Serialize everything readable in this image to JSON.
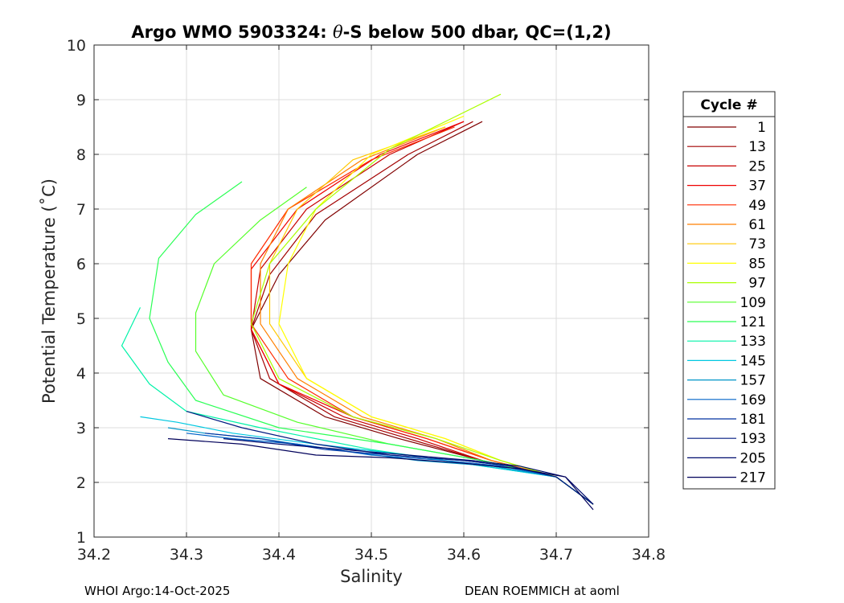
{
  "chart_data": {
    "type": "line",
    "title_prefix": "Argo WMO 5903324: ",
    "title_theta": "θ",
    "title_suffix": "-S below 500 dbar,  QC=(1,2)",
    "xlabel": "Salinity",
    "ylabel": "Potential Temperature (˚C)",
    "xlim": [
      34.2,
      34.8
    ],
    "ylim": [
      1,
      10
    ],
    "x_ticks": [
      "34.2",
      "34.3",
      "34.4",
      "34.5",
      "34.6",
      "34.7",
      "34.8"
    ],
    "y_ticks": [
      "1",
      "2",
      "3",
      "4",
      "5",
      "6",
      "7",
      "8",
      "9",
      "10"
    ],
    "grid": true,
    "legend_title": "Cycle #",
    "legend_position": "right",
    "series": [
      {
        "name": "1",
        "color": "#800000",
        "salinity": [
          34.62,
          34.55,
          34.45,
          34.4,
          34.37,
          34.38,
          34.45,
          34.53,
          34.62,
          34.7,
          34.74
        ],
        "theta": [
          8.6,
          8.0,
          6.8,
          5.8,
          4.8,
          3.9,
          3.2,
          2.8,
          2.4,
          2.1,
          1.6
        ]
      },
      {
        "name": "13",
        "color": "#a30000",
        "salinity": [
          34.61,
          34.54,
          34.44,
          34.39,
          34.37,
          34.39,
          34.46,
          34.54,
          34.62,
          34.7,
          34.74
        ],
        "theta": [
          8.6,
          8.0,
          6.9,
          5.8,
          4.8,
          3.9,
          3.2,
          2.8,
          2.4,
          2.1,
          1.6
        ]
      },
      {
        "name": "25",
        "color": "#c80000",
        "salinity": [
          34.6,
          34.52,
          34.43,
          34.38,
          34.37,
          34.4,
          34.47,
          34.55,
          34.62,
          34.7,
          34.74
        ],
        "theta": [
          8.6,
          8.0,
          7.0,
          5.9,
          4.8,
          3.8,
          3.2,
          2.8,
          2.4,
          2.1,
          1.6
        ]
      },
      {
        "name": "37",
        "color": "#ee0000",
        "salinity": [
          34.6,
          34.51,
          34.42,
          34.37,
          34.37,
          34.4,
          34.48,
          34.56,
          34.63,
          34.7,
          34.74
        ],
        "theta": [
          8.6,
          8.0,
          7.0,
          5.9,
          4.8,
          3.8,
          3.2,
          2.8,
          2.4,
          2.1,
          1.6
        ]
      },
      {
        "name": "49",
        "color": "#ff2a00",
        "salinity": [
          34.59,
          34.5,
          34.41,
          34.37,
          34.37,
          34.41,
          34.48,
          34.56,
          34.63,
          34.7,
          34.74
        ],
        "theta": [
          8.5,
          7.9,
          7.0,
          6.0,
          4.9,
          3.9,
          3.2,
          2.8,
          2.4,
          2.1,
          1.6
        ]
      },
      {
        "name": "61",
        "color": "#ff7f00",
        "salinity": [
          34.58,
          34.49,
          34.41,
          34.38,
          34.38,
          34.42,
          34.49,
          34.57,
          34.63,
          34.7,
          34.74
        ],
        "theta": [
          8.5,
          7.9,
          7.0,
          6.0,
          4.9,
          3.9,
          3.2,
          2.8,
          2.4,
          2.1,
          1.6
        ]
      },
      {
        "name": "73",
        "color": "#ffc800",
        "salinity": [
          34.58,
          34.48,
          34.42,
          34.39,
          34.39,
          34.43,
          34.5,
          34.58,
          34.64,
          34.7,
          34.74
        ],
        "theta": [
          8.5,
          7.9,
          7.0,
          6.0,
          4.9,
          3.9,
          3.2,
          2.8,
          2.4,
          2.1,
          1.6
        ]
      },
      {
        "name": "85",
        "color": "#ffff00",
        "salinity": [
          34.6,
          34.5,
          34.44,
          34.41,
          34.4,
          34.43,
          34.5,
          34.58,
          34.64,
          34.7,
          34.74
        ],
        "theta": [
          8.7,
          8.0,
          7.0,
          6.0,
          4.9,
          3.9,
          3.2,
          2.8,
          2.4,
          2.1,
          1.6
        ]
      },
      {
        "name": "97",
        "color": "#aaff00",
        "salinity": [
          34.64,
          34.52,
          34.44,
          34.39,
          34.37,
          34.4,
          34.48,
          34.57,
          34.64,
          34.7,
          34.74
        ],
        "theta": [
          9.1,
          8.1,
          7.0,
          6.0,
          4.9,
          3.9,
          3.2,
          2.8,
          2.4,
          2.1,
          1.6
        ]
      },
      {
        "name": "109",
        "color": "#55ff2a",
        "salinity": [
          34.43,
          34.38,
          34.33,
          34.31,
          34.31,
          34.34,
          34.42,
          34.52,
          34.62,
          34.7,
          34.74
        ],
        "theta": [
          7.4,
          6.8,
          6.0,
          5.1,
          4.4,
          3.6,
          3.1,
          2.7,
          2.4,
          2.1,
          1.6
        ]
      },
      {
        "name": "121",
        "color": "#2aff55",
        "salinity": [
          34.36,
          34.31,
          34.27,
          34.26,
          34.28,
          34.31,
          34.4,
          34.52,
          34.62,
          34.7,
          34.74
        ],
        "theta": [
          7.5,
          6.9,
          6.1,
          5.0,
          4.2,
          3.5,
          3.0,
          2.7,
          2.4,
          2.1,
          1.6
        ]
      },
      {
        "name": "133",
        "color": "#00f2a8",
        "salinity": [
          34.25,
          34.23,
          34.26,
          34.3,
          34.38,
          34.5,
          34.62,
          34.7,
          34.74
        ],
        "theta": [
          5.2,
          4.5,
          3.8,
          3.3,
          3.0,
          2.6,
          2.3,
          2.1,
          1.6
        ]
      },
      {
        "name": "145",
        "color": "#00c8e0",
        "salinity": [
          34.25,
          34.29,
          34.35,
          34.44,
          34.54,
          34.62,
          34.7,
          34.74
        ],
        "theta": [
          3.2,
          3.1,
          2.9,
          2.7,
          2.5,
          2.3,
          2.1,
          1.6
        ]
      },
      {
        "name": "157",
        "color": "#0096c8",
        "salinity": [
          34.28,
          34.32,
          34.38,
          34.46,
          34.55,
          34.63,
          34.7,
          34.74
        ],
        "theta": [
          3.0,
          2.9,
          2.8,
          2.6,
          2.4,
          2.3,
          2.1,
          1.6
        ]
      },
      {
        "name": "169",
        "color": "#0064c8",
        "salinity": [
          34.3,
          34.35,
          34.42,
          34.5,
          34.58,
          34.64,
          34.7,
          34.74
        ],
        "theta": [
          2.9,
          2.8,
          2.7,
          2.5,
          2.4,
          2.3,
          2.1,
          1.6
        ]
      },
      {
        "name": "181",
        "color": "#0032a0",
        "salinity": [
          34.32,
          34.38,
          34.45,
          34.52,
          34.6,
          34.65,
          34.7,
          34.74
        ],
        "theta": [
          2.9,
          2.8,
          2.6,
          2.5,
          2.4,
          2.3,
          2.1,
          1.6
        ]
      },
      {
        "name": "193",
        "color": "#001a80",
        "salinity": [
          34.3,
          34.36,
          34.44,
          34.52,
          34.6,
          34.65,
          34.7,
          34.74
        ],
        "theta": [
          3.3,
          3.0,
          2.7,
          2.5,
          2.4,
          2.3,
          2.1,
          1.6
        ]
      },
      {
        "name": "205",
        "color": "#000c6e",
        "salinity": [
          34.34,
          34.4,
          34.47,
          34.54,
          34.61,
          34.66,
          34.71,
          34.74
        ],
        "theta": [
          2.8,
          2.7,
          2.6,
          2.5,
          2.4,
          2.3,
          2.1,
          1.6
        ]
      },
      {
        "name": "217",
        "color": "#00005a",
        "salinity": [
          34.28,
          34.36,
          34.44,
          34.52,
          34.6,
          34.66,
          34.71,
          34.74
        ],
        "theta": [
          2.8,
          2.7,
          2.5,
          2.45,
          2.35,
          2.25,
          2.1,
          1.5
        ]
      }
    ]
  },
  "footer": {
    "left": "WHOI Argo:14-Oct-2025",
    "right": "DEAN ROEMMICH at aoml"
  }
}
